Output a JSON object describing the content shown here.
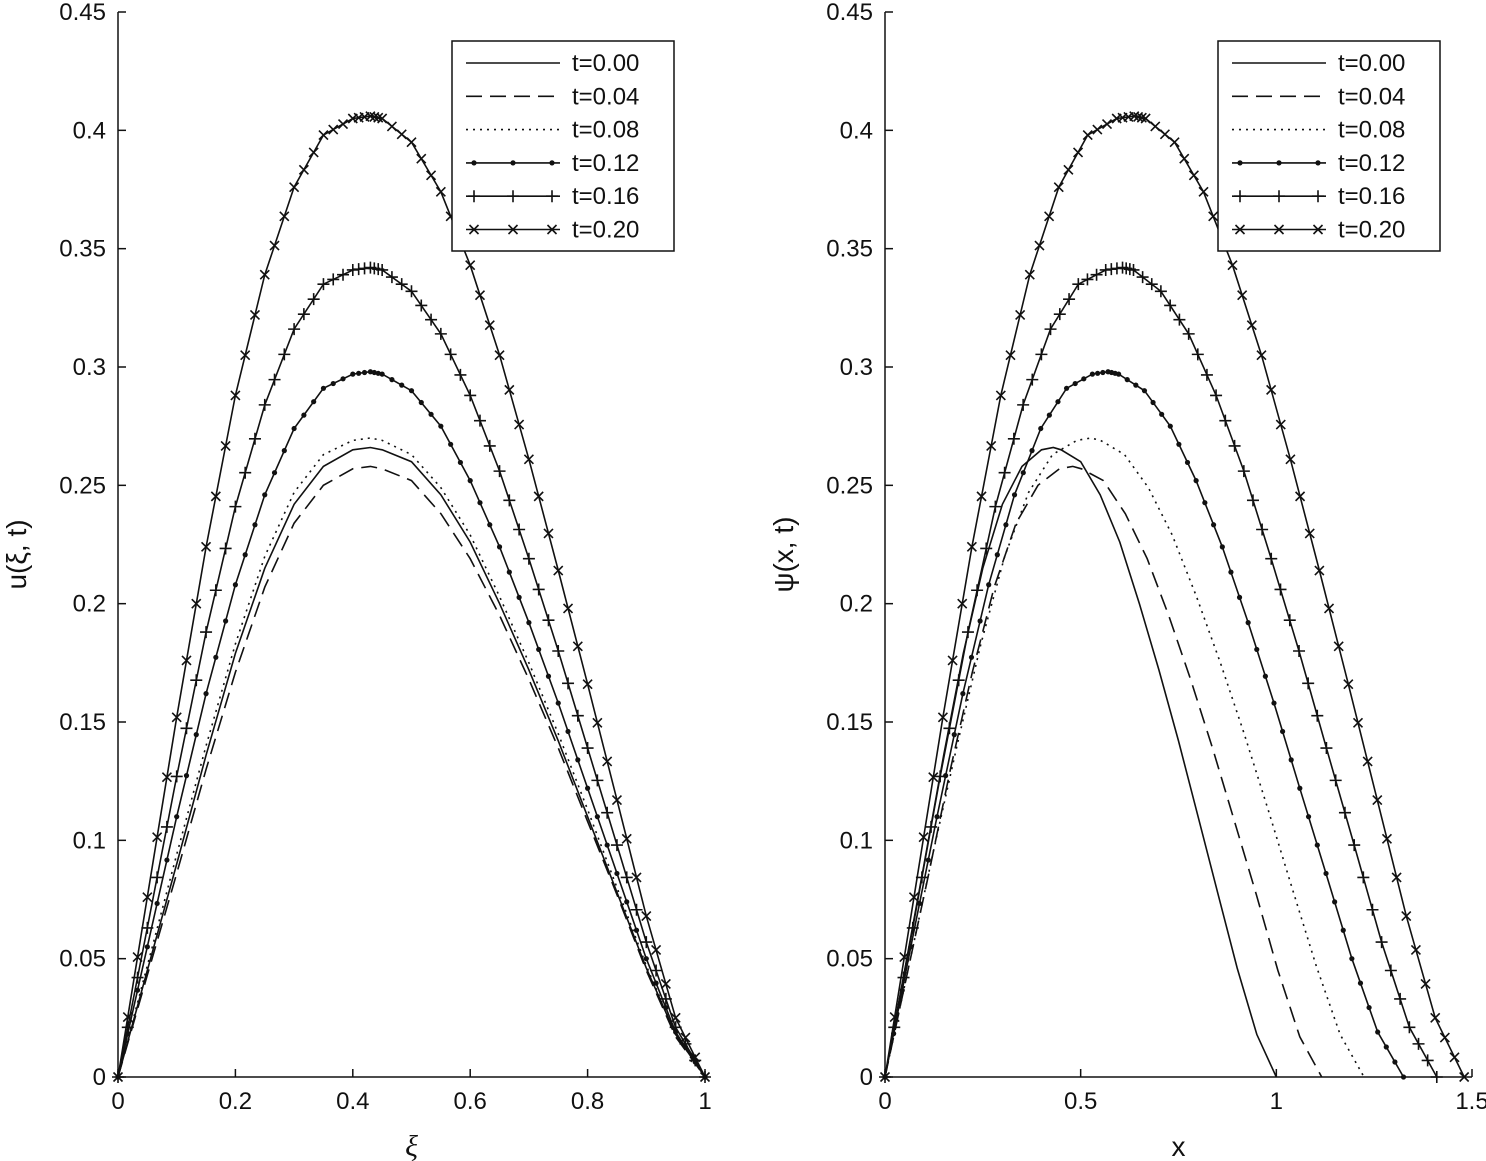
{
  "chart_data": [
    {
      "type": "line",
      "xlabel": "ξ",
      "ylabel": "u(ξ, t)",
      "xlim": [
        0,
        1
      ],
      "ylim": [
        0,
        0.45
      ],
      "xticks": [
        0,
        0.2,
        0.4,
        0.6,
        0.8,
        1
      ],
      "xtick_labels": [
        "0",
        "0.2",
        "0.4",
        "0.6",
        "0.8",
        "1"
      ],
      "yticks": [
        0,
        0.05,
        0.1,
        0.15,
        0.2,
        0.25,
        0.3,
        0.35,
        0.4,
        0.45
      ],
      "ytick_labels": [
        "0",
        "0.05",
        "0.1",
        "0.15",
        "0.2",
        "0.25",
        "0.3",
        "0.35",
        "0.4",
        "0.45"
      ],
      "grid": false,
      "legend": "top-right",
      "series": [
        {
          "name": "t=0.00",
          "style": "solid",
          "marker": "none",
          "x": [
            0,
            0.05,
            0.1,
            0.15,
            0.2,
            0.25,
            0.3,
            0.35,
            0.4,
            0.43,
            0.45,
            0.5,
            0.55,
            0.6,
            0.65,
            0.7,
            0.75,
            0.8,
            0.85,
            0.9,
            0.95,
            1
          ],
          "y": [
            0,
            0.045,
            0.09,
            0.136,
            0.179,
            0.215,
            0.242,
            0.258,
            0.265,
            0.266,
            0.265,
            0.26,
            0.246,
            0.226,
            0.2,
            0.172,
            0.142,
            0.11,
            0.078,
            0.046,
            0.018,
            0
          ]
        },
        {
          "name": "t=0.04",
          "style": "dashed",
          "marker": "none",
          "x": [
            0,
            0.05,
            0.1,
            0.15,
            0.2,
            0.25,
            0.3,
            0.35,
            0.4,
            0.43,
            0.45,
            0.5,
            0.55,
            0.6,
            0.65,
            0.7,
            0.75,
            0.8,
            0.85,
            0.9,
            0.95,
            1
          ],
          "y": [
            0,
            0.043,
            0.086,
            0.13,
            0.171,
            0.207,
            0.234,
            0.25,
            0.257,
            0.258,
            0.257,
            0.252,
            0.238,
            0.219,
            0.195,
            0.168,
            0.139,
            0.108,
            0.077,
            0.045,
            0.017,
            0
          ]
        },
        {
          "name": "t=0.08",
          "style": "dotted",
          "marker": "none",
          "x": [
            0,
            0.05,
            0.1,
            0.15,
            0.2,
            0.25,
            0.3,
            0.35,
            0.4,
            0.43,
            0.45,
            0.5,
            0.55,
            0.6,
            0.65,
            0.7,
            0.75,
            0.8,
            0.85,
            0.9,
            0.95,
            1
          ],
          "y": [
            0,
            0.047,
            0.094,
            0.14,
            0.183,
            0.22,
            0.247,
            0.263,
            0.269,
            0.27,
            0.269,
            0.263,
            0.249,
            0.229,
            0.203,
            0.175,
            0.145,
            0.113,
            0.08,
            0.047,
            0.018,
            0
          ]
        },
        {
          "name": "t=0.12",
          "style": "solid",
          "marker": "dot",
          "x": [
            0,
            0.05,
            0.1,
            0.15,
            0.2,
            0.25,
            0.3,
            0.35,
            0.4,
            0.43,
            0.45,
            0.5,
            0.55,
            0.6,
            0.65,
            0.7,
            0.75,
            0.8,
            0.85,
            0.9,
            0.95,
            1
          ],
          "y": [
            0,
            0.055,
            0.11,
            0.162,
            0.208,
            0.246,
            0.274,
            0.291,
            0.297,
            0.298,
            0.297,
            0.29,
            0.275,
            0.252,
            0.224,
            0.192,
            0.158,
            0.122,
            0.086,
            0.05,
            0.019,
            0
          ]
        },
        {
          "name": "t=0.16",
          "style": "solid",
          "marker": "plus",
          "x": [
            0,
            0.05,
            0.1,
            0.15,
            0.2,
            0.25,
            0.3,
            0.35,
            0.4,
            0.43,
            0.45,
            0.5,
            0.55,
            0.6,
            0.65,
            0.7,
            0.75,
            0.8,
            0.85,
            0.9,
            0.95,
            1
          ],
          "y": [
            0,
            0.063,
            0.127,
            0.188,
            0.241,
            0.284,
            0.316,
            0.335,
            0.341,
            0.342,
            0.341,
            0.332,
            0.314,
            0.288,
            0.256,
            0.219,
            0.18,
            0.139,
            0.098,
            0.057,
            0.021,
            0
          ]
        },
        {
          "name": "t=0.20",
          "style": "solid",
          "marker": "x",
          "x": [
            0,
            0.05,
            0.1,
            0.15,
            0.2,
            0.25,
            0.3,
            0.35,
            0.4,
            0.43,
            0.45,
            0.5,
            0.55,
            0.6,
            0.65,
            0.7,
            0.75,
            0.8,
            0.85,
            0.9,
            0.95,
            1
          ],
          "y": [
            0,
            0.076,
            0.152,
            0.224,
            0.288,
            0.339,
            0.376,
            0.398,
            0.405,
            0.406,
            0.405,
            0.395,
            0.374,
            0.343,
            0.305,
            0.261,
            0.214,
            0.166,
            0.117,
            0.068,
            0.025,
            0
          ]
        }
      ]
    },
    {
      "type": "line",
      "xlabel": "x",
      "ylabel": "ψ(x, t)",
      "xlim": [
        0,
        1.5
      ],
      "ylim": [
        0,
        0.45
      ],
      "xticks": [
        0,
        0.5,
        1,
        1.5
      ],
      "xtick_labels": [
        "0",
        "0.5",
        "1",
        "1.5"
      ],
      "yticks": [
        0,
        0.05,
        0.1,
        0.15,
        0.2,
        0.25,
        0.3,
        0.35,
        0.4,
        0.45
      ],
      "ytick_labels": [
        "0",
        "0.05",
        "0.1",
        "0.15",
        "0.2",
        "0.25",
        "0.3",
        "0.35",
        "0.4",
        "0.45"
      ],
      "grid": false,
      "legend": "top-right",
      "series": [
        {
          "name": "t=0.00",
          "style": "solid",
          "marker": "none",
          "x": [
            0,
            0.05,
            0.1,
            0.15,
            0.2,
            0.25,
            0.3,
            0.35,
            0.4,
            0.43,
            0.45,
            0.5,
            0.55,
            0.6,
            0.65,
            0.7,
            0.75,
            0.8,
            0.85,
            0.9,
            0.95,
            1
          ],
          "y": [
            0,
            0.045,
            0.09,
            0.136,
            0.179,
            0.215,
            0.242,
            0.258,
            0.265,
            0.266,
            0.265,
            0.26,
            0.246,
            0.226,
            0.2,
            0.172,
            0.142,
            0.11,
            0.078,
            0.046,
            0.018,
            0
          ]
        },
        {
          "name": "t=0.04",
          "style": "dashed",
          "marker": "none",
          "x": [
            0,
            0.056,
            0.112,
            0.167,
            0.223,
            0.279,
            0.335,
            0.391,
            0.446,
            0.48,
            0.502,
            0.558,
            0.614,
            0.67,
            0.725,
            0.781,
            0.837,
            0.893,
            0.949,
            1.004,
            1.06,
            1.116
          ],
          "y": [
            0,
            0.043,
            0.086,
            0.13,
            0.171,
            0.207,
            0.234,
            0.25,
            0.257,
            0.258,
            0.257,
            0.252,
            0.238,
            0.219,
            0.195,
            0.168,
            0.139,
            0.108,
            0.077,
            0.045,
            0.017,
            0
          ]
        },
        {
          "name": "t=0.08",
          "style": "dotted",
          "marker": "none",
          "x": [
            0,
            0.061,
            0.122,
            0.184,
            0.245,
            0.306,
            0.367,
            0.428,
            0.49,
            0.526,
            0.551,
            0.612,
            0.673,
            0.734,
            0.796,
            0.857,
            0.918,
            0.979,
            1.04,
            1.102,
            1.163,
            1.224
          ],
          "y": [
            0,
            0.047,
            0.094,
            0.14,
            0.183,
            0.22,
            0.247,
            0.263,
            0.269,
            0.27,
            0.269,
            0.263,
            0.249,
            0.229,
            0.203,
            0.175,
            0.145,
            0.113,
            0.08,
            0.047,
            0.018,
            0
          ]
        },
        {
          "name": "t=0.12",
          "style": "solid",
          "marker": "dot",
          "x": [
            0,
            0.066,
            0.133,
            0.199,
            0.265,
            0.331,
            0.398,
            0.464,
            0.53,
            0.57,
            0.597,
            0.663,
            0.729,
            0.795,
            0.862,
            0.928,
            0.994,
            1.06,
            1.127,
            1.193,
            1.259,
            1.325
          ],
          "y": [
            0,
            0.055,
            0.11,
            0.162,
            0.208,
            0.246,
            0.274,
            0.291,
            0.297,
            0.298,
            0.297,
            0.29,
            0.275,
            0.252,
            0.224,
            0.192,
            0.158,
            0.122,
            0.086,
            0.05,
            0.019,
            0
          ]
        },
        {
          "name": "t=0.16",
          "style": "solid",
          "marker": "plus",
          "x": [
            0,
            0.071,
            0.141,
            0.212,
            0.282,
            0.353,
            0.423,
            0.494,
            0.564,
            0.607,
            0.635,
            0.705,
            0.776,
            0.846,
            0.917,
            0.987,
            1.058,
            1.128,
            1.199,
            1.269,
            1.34,
            1.41
          ],
          "y": [
            0,
            0.063,
            0.127,
            0.188,
            0.241,
            0.284,
            0.316,
            0.335,
            0.341,
            0.342,
            0.341,
            0.332,
            0.314,
            0.288,
            0.256,
            0.219,
            0.18,
            0.139,
            0.098,
            0.057,
            0.021,
            0
          ]
        },
        {
          "name": "t=0.20",
          "style": "solid",
          "marker": "x",
          "x": [
            0,
            0.074,
            0.148,
            0.222,
            0.296,
            0.37,
            0.444,
            0.518,
            0.592,
            0.637,
            0.666,
            0.74,
            0.814,
            0.888,
            0.962,
            1.036,
            1.11,
            1.184,
            1.258,
            1.332,
            1.406,
            1.48
          ],
          "y": [
            0,
            0.076,
            0.152,
            0.224,
            0.288,
            0.339,
            0.376,
            0.398,
            0.405,
            0.406,
            0.405,
            0.395,
            0.374,
            0.343,
            0.305,
            0.261,
            0.214,
            0.166,
            0.117,
            0.068,
            0.025,
            0
          ]
        }
      ]
    }
  ]
}
